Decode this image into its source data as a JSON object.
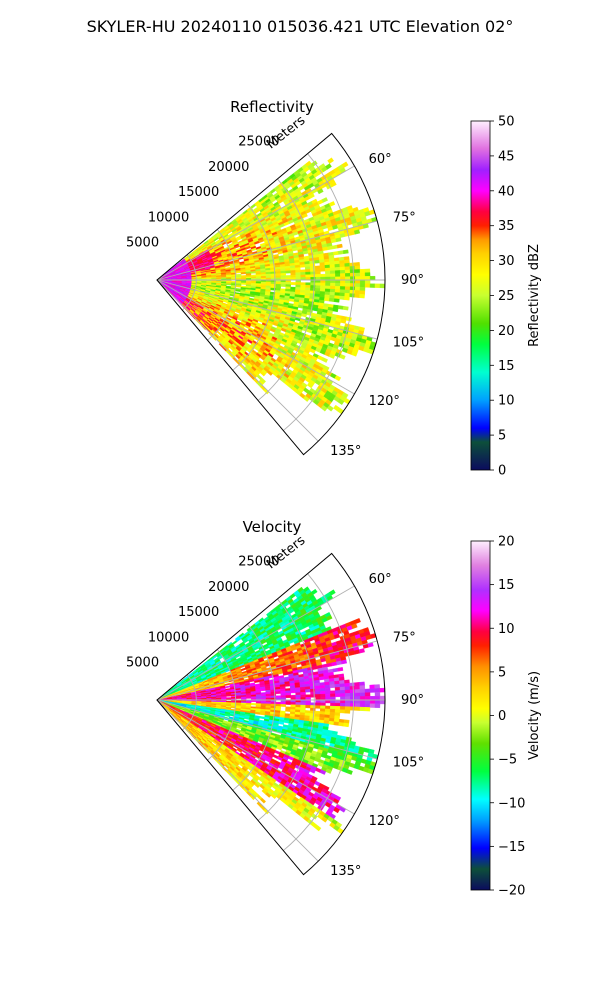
{
  "title": "SKYLER-HU  20240110  015036.421 UTC Elevation 02°",
  "chart_data": [
    {
      "type": "heatmap",
      "projection": "polar-sector",
      "title": "Reflectivity",
      "range_axis_label": "Meters",
      "range_ticks": [
        5000,
        10000,
        15000,
        20000,
        25000
      ],
      "range_tick_labels": [
        "5000",
        "10000",
        "15000",
        "20000",
        "25000"
      ],
      "range_max": 29000,
      "azimuth_range_deg": [
        50,
        140
      ],
      "azimuth_ticks_deg": [
        60,
        75,
        90,
        105,
        120,
        135
      ],
      "azimuth_tick_labels": [
        "60°",
        "75°",
        "90°",
        "105°",
        "120°",
        "135°"
      ],
      "grid": true,
      "colorbar": {
        "label": "Reflectivity dBZ",
        "vmin": 0,
        "vmax": 50,
        "ticks": [
          0,
          5,
          10,
          15,
          20,
          25,
          30,
          35,
          40,
          45,
          50
        ],
        "tick_labels": [
          "0",
          "5",
          "10",
          "15",
          "20",
          "25",
          "30",
          "35",
          "40",
          "45",
          "50"
        ],
        "color_stops": [
          [
            0,
            "#0b0b5e"
          ],
          [
            0.08,
            "#0d4f3a"
          ],
          [
            0.12,
            "#0000ff"
          ],
          [
            0.2,
            "#00a0ff"
          ],
          [
            0.28,
            "#00ffd0"
          ],
          [
            0.36,
            "#00ff40"
          ],
          [
            0.42,
            "#50e000"
          ],
          [
            0.5,
            "#c8ff30"
          ],
          [
            0.56,
            "#ffff00"
          ],
          [
            0.62,
            "#ffd000"
          ],
          [
            0.66,
            "#ff9a00"
          ],
          [
            0.7,
            "#ff2000"
          ],
          [
            0.74,
            "#ff0040"
          ],
          [
            0.8,
            "#ff00ff"
          ],
          [
            0.86,
            "#a020ff"
          ],
          [
            0.92,
            "#e070e0"
          ],
          [
            1,
            "#fff0ff"
          ]
        ]
      }
    },
    {
      "type": "heatmap",
      "projection": "polar-sector",
      "title": "Velocity",
      "range_axis_label": "Meters",
      "range_ticks": [
        5000,
        10000,
        15000,
        20000,
        25000
      ],
      "range_tick_labels": [
        "5000",
        "10000",
        "15000",
        "20000",
        "25000"
      ],
      "range_max": 29000,
      "azimuth_range_deg": [
        50,
        140
      ],
      "azimuth_ticks_deg": [
        60,
        75,
        90,
        105,
        120,
        135
      ],
      "azimuth_tick_labels": [
        "60°",
        "75°",
        "90°",
        "105°",
        "120°",
        "135°"
      ],
      "grid": true,
      "colorbar": {
        "label": "Velocity (m/s)",
        "vmin": -20,
        "vmax": 20,
        "ticks": [
          -20,
          -15,
          -10,
          -5,
          0,
          5,
          10,
          15,
          20
        ],
        "tick_labels": [
          "−20",
          "−15",
          "−10",
          "−5",
          "0",
          "5",
          "10",
          "15",
          "20"
        ],
        "color_stops": [
          [
            0,
            "#0b0b5e"
          ],
          [
            0.06,
            "#0d4f3a"
          ],
          [
            0.12,
            "#0000ff"
          ],
          [
            0.2,
            "#00a0ff"
          ],
          [
            0.26,
            "#00ffff"
          ],
          [
            0.34,
            "#00ff40"
          ],
          [
            0.42,
            "#60e000"
          ],
          [
            0.48,
            "#c8ff30"
          ],
          [
            0.52,
            "#ffff00"
          ],
          [
            0.58,
            "#ffd000"
          ],
          [
            0.64,
            "#ff9000"
          ],
          [
            0.7,
            "#ff2000"
          ],
          [
            0.74,
            "#ff0040"
          ],
          [
            0.8,
            "#ff00ff"
          ],
          [
            0.86,
            "#b030ff"
          ],
          [
            0.93,
            "#e080e0"
          ],
          [
            1,
            "#fff0ff"
          ]
        ]
      }
    }
  ]
}
